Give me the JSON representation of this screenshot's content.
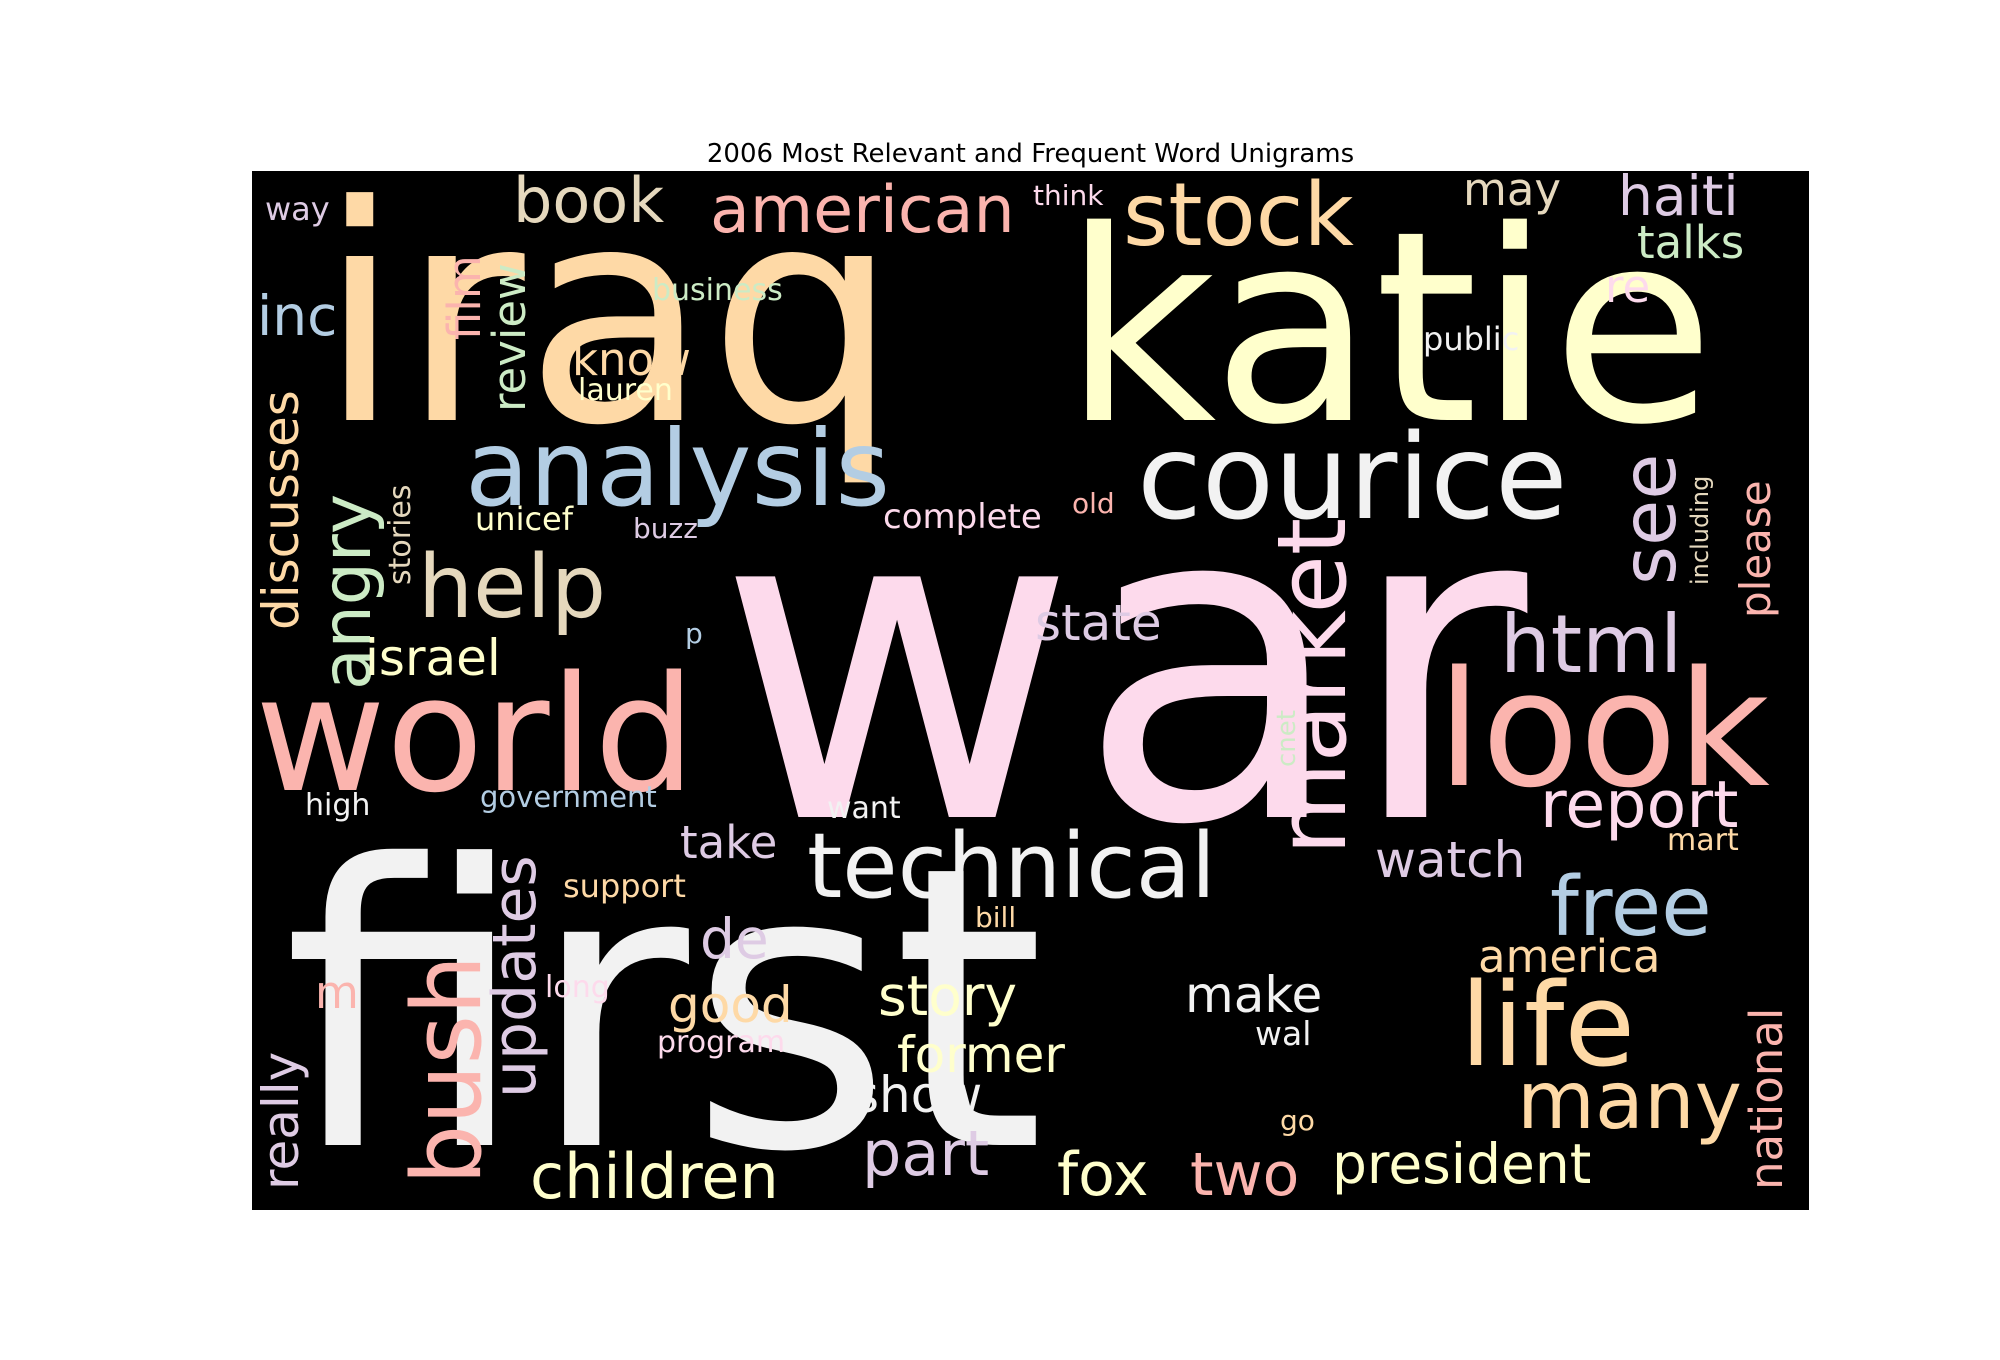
{
  "chart_data": {
    "type": "wordcloud",
    "title": "2006 Most Relevant and Frequent Word Unigrams",
    "background": "#000000",
    "colormap": "Pastel1",
    "palette": {
      "pink": "#fddaec",
      "white": "#f2f2f2",
      "peach": "#fed9a6",
      "yellow": "#ffffcc",
      "salmon": "#fbb4ae",
      "blue": "#b3cde3",
      "green": "#ccebc5",
      "lavender": "#decbe4",
      "tan": "#e5d8bd"
    },
    "words": [
      {
        "text": "war",
        "weight": 1.0,
        "color": "#fddaec",
        "rotated": false
      },
      {
        "text": "first",
        "weight": 0.98,
        "color": "#f2f2f2",
        "rotated": false
      },
      {
        "text": "iraq",
        "weight": 0.85,
        "color": "#fed9a6",
        "rotated": false
      },
      {
        "text": "katie",
        "weight": 0.74,
        "color": "#ffffcc",
        "rotated": false
      },
      {
        "text": "world",
        "weight": 0.52,
        "color": "#fbb4ae",
        "rotated": false
      },
      {
        "text": "look",
        "weight": 0.52,
        "color": "#fbb4ae",
        "rotated": false
      },
      {
        "text": "courice",
        "weight": 0.47,
        "color": "#f2f2f2",
        "rotated": false
      },
      {
        "text": "analysis",
        "weight": 0.42,
        "color": "#b3cde3",
        "rotated": false
      },
      {
        "text": "market",
        "weight": 0.4,
        "color": "#fddaec",
        "rotated": true
      },
      {
        "text": "bush",
        "weight": 0.36,
        "color": "#fbb4ae",
        "rotated": true
      },
      {
        "text": "life",
        "weight": 0.36,
        "color": "#fed9a6",
        "rotated": false
      },
      {
        "text": "technical",
        "weight": 0.34,
        "color": "#f2f2f2",
        "rotated": false
      },
      {
        "text": "stock",
        "weight": 0.32,
        "color": "#fed9a6",
        "rotated": false
      },
      {
        "text": "help",
        "weight": 0.32,
        "color": "#e5d8bd",
        "rotated": false
      },
      {
        "text": "see",
        "weight": 0.31,
        "color": "#decbe4",
        "rotated": true
      },
      {
        "text": "html",
        "weight": 0.29,
        "color": "#decbe4",
        "rotated": false
      },
      {
        "text": "free",
        "weight": 0.29,
        "color": "#b3cde3",
        "rotated": false
      },
      {
        "text": "many",
        "weight": 0.29,
        "color": "#fed9a6",
        "rotated": false
      },
      {
        "text": "angry",
        "weight": 0.27,
        "color": "#ccebc5",
        "rotated": true
      },
      {
        "text": "updates",
        "weight": 0.25,
        "color": "#decbe4",
        "rotated": true
      },
      {
        "text": "american",
        "weight": 0.23,
        "color": "#fbb4ae",
        "rotated": false
      },
      {
        "text": "report",
        "weight": 0.23,
        "color": "#fddaec",
        "rotated": false
      },
      {
        "text": "children",
        "weight": 0.23,
        "color": "#ffffcc",
        "rotated": false
      },
      {
        "text": "part",
        "weight": 0.23,
        "color": "#decbe4",
        "rotated": false
      },
      {
        "text": "book",
        "weight": 0.22,
        "color": "#e5d8bd",
        "rotated": false
      },
      {
        "text": "haiti",
        "weight": 0.21,
        "color": "#decbe4",
        "rotated": false
      },
      {
        "text": "fox",
        "weight": 0.21,
        "color": "#ffffcc",
        "rotated": false
      },
      {
        "text": "two",
        "weight": 0.21,
        "color": "#fbb4ae",
        "rotated": false
      },
      {
        "text": "president",
        "weight": 0.2,
        "color": "#ffffcc",
        "rotated": false
      },
      {
        "text": "story",
        "weight": 0.2,
        "color": "#ffffcc",
        "rotated": false
      },
      {
        "text": "discusses",
        "weight": 0.2,
        "color": "#fed9a6",
        "rotated": true
      },
      {
        "text": "inc",
        "weight": 0.2,
        "color": "#b3cde3",
        "rotated": false
      },
      {
        "text": "israel",
        "weight": 0.19,
        "color": "#ffffcc",
        "rotated": false
      },
      {
        "text": "de",
        "weight": 0.19,
        "color": "#decbe4",
        "rotated": false
      },
      {
        "text": "really",
        "weight": 0.19,
        "color": "#decbe4",
        "rotated": true
      },
      {
        "text": "national",
        "weight": 0.19,
        "color": "#fbb4ae",
        "rotated": true
      },
      {
        "text": "state",
        "weight": 0.18,
        "color": "#decbe4",
        "rotated": false
      },
      {
        "text": "watch",
        "weight": 0.18,
        "color": "#decbe4",
        "rotated": false
      },
      {
        "text": "make",
        "weight": 0.18,
        "color": "#f2f2f2",
        "rotated": false
      },
      {
        "text": "good",
        "weight": 0.18,
        "color": "#fed9a6",
        "rotated": false
      },
      {
        "text": "former",
        "weight": 0.18,
        "color": "#ffffcc",
        "rotated": false
      },
      {
        "text": "show",
        "weight": 0.18,
        "color": "#f2f2f2",
        "rotated": false
      },
      {
        "text": "review",
        "weight": 0.18,
        "color": "#ccebc5",
        "rotated": true
      },
      {
        "text": "film",
        "weight": 0.18,
        "color": "#fbb4ae",
        "rotated": true
      },
      {
        "text": "know",
        "weight": 0.17,
        "color": "#fed9a6",
        "rotated": false
      },
      {
        "text": "take",
        "weight": 0.17,
        "color": "#decbe4",
        "rotated": false
      },
      {
        "text": "please",
        "weight": 0.17,
        "color": "#fbb4ae",
        "rotated": true
      },
      {
        "text": "talks",
        "weight": 0.16,
        "color": "#ccebc5",
        "rotated": false
      },
      {
        "text": "america",
        "weight": 0.16,
        "color": "#fed9a6",
        "rotated": false
      },
      {
        "text": "may",
        "weight": 0.16,
        "color": "#e5d8bd",
        "rotated": false
      },
      {
        "text": "re",
        "weight": 0.16,
        "color": "#fddaec",
        "rotated": false
      },
      {
        "text": "m",
        "weight": 0.16,
        "color": "#fbb4ae",
        "rotated": false
      },
      {
        "text": "unicef",
        "weight": 0.13,
        "color": "#ffffcc",
        "rotated": false
      },
      {
        "text": "stories",
        "weight": 0.13,
        "color": "#e5d8bd",
        "rotated": true
      },
      {
        "text": "public",
        "weight": 0.13,
        "color": "#f2f2f2",
        "rotated": false
      },
      {
        "text": "complete",
        "weight": 0.13,
        "color": "#fddaec",
        "rotated": false
      },
      {
        "text": "way",
        "weight": 0.12,
        "color": "#decbe4",
        "rotated": false
      },
      {
        "text": "business",
        "weight": 0.12,
        "color": "#ccebc5",
        "rotated": false
      },
      {
        "text": "lauren",
        "weight": 0.12,
        "color": "#ffffcc",
        "rotated": false
      },
      {
        "text": "buzz",
        "weight": 0.12,
        "color": "#decbe4",
        "rotated": false
      },
      {
        "text": "government",
        "weight": 0.12,
        "color": "#b3cde3",
        "rotated": false
      },
      {
        "text": "high",
        "weight": 0.12,
        "color": "#f2f2f2",
        "rotated": false
      },
      {
        "text": "want",
        "weight": 0.12,
        "color": "#f2f2f2",
        "rotated": false
      },
      {
        "text": "support",
        "weight": 0.12,
        "color": "#fed9a6",
        "rotated": false
      },
      {
        "text": "program",
        "weight": 0.12,
        "color": "#fddaec",
        "rotated": false
      },
      {
        "text": "long",
        "weight": 0.12,
        "color": "#fddaec",
        "rotated": false
      },
      {
        "text": "mart",
        "weight": 0.12,
        "color": "#fed9a6",
        "rotated": false
      },
      {
        "text": "wal",
        "weight": 0.12,
        "color": "#f2f2f2",
        "rotated": false
      },
      {
        "text": "think",
        "weight": 0.11,
        "color": "#fddaec",
        "rotated": false
      },
      {
        "text": "old",
        "weight": 0.11,
        "color": "#fbb4ae",
        "rotated": false
      },
      {
        "text": "including",
        "weight": 0.11,
        "color": "#e5d8bd",
        "rotated": true
      },
      {
        "text": "cnet",
        "weight": 0.11,
        "color": "#ccebc5",
        "rotated": true
      },
      {
        "text": "bill",
        "weight": 0.11,
        "color": "#fed9a6",
        "rotated": false
      },
      {
        "text": "go",
        "weight": 0.11,
        "color": "#fed9a6",
        "rotated": false
      },
      {
        "text": "p",
        "weight": 0.11,
        "color": "#b3cde3",
        "rotated": false
      }
    ]
  }
}
